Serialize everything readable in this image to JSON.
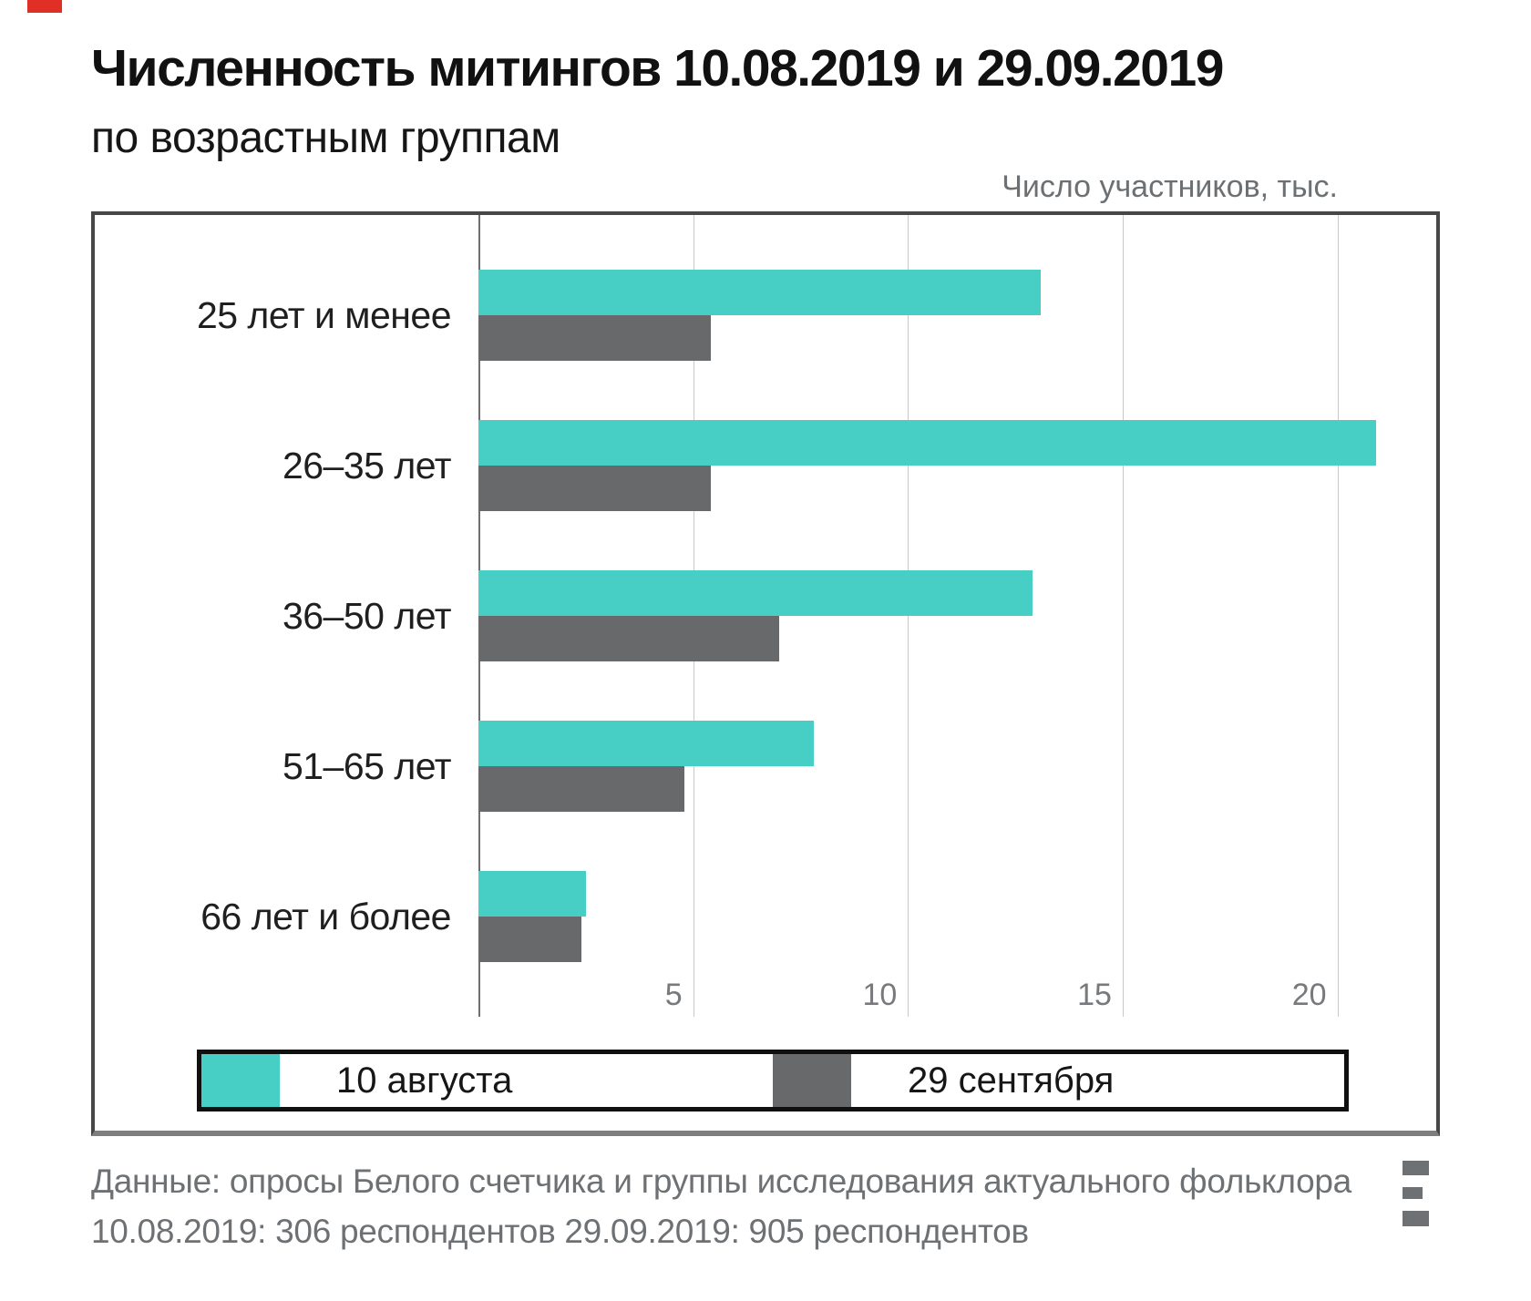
{
  "header": {
    "title": "Численность митингов 10.08.2019 и 29.09.2019",
    "subtitle": "по возрастным группам",
    "axis_note": "Число участников, тыс."
  },
  "chart_data": {
    "type": "bar",
    "orientation": "horizontal",
    "title": "Численность митингов 10.08.2019 и 29.09.2019 по возрастным группам",
    "xlabel": "Число участников, тыс.",
    "categories": [
      "25 лет и менее",
      "26–35 лет",
      "36–50 лет",
      "51–65 лет",
      "66 лет и более"
    ],
    "series": [
      {
        "name": "10 августа",
        "color": "#47cec5",
        "values": [
          13.1,
          20.9,
          12.9,
          7.8,
          2.5
        ]
      },
      {
        "name": "29 сентября",
        "color": "#67696b",
        "values": [
          5.4,
          5.4,
          7.0,
          4.8,
          2.4
        ]
      }
    ],
    "xticks": [
      5,
      10,
      15,
      20
    ],
    "xlim": [
      0,
      22.3
    ],
    "grid": true,
    "legend_position": "bottom"
  },
  "legend": {
    "items": [
      {
        "label": "10 августа",
        "color": "#47cec5"
      },
      {
        "label": "29 сентября",
        "color": "#67696b"
      }
    ]
  },
  "footer": {
    "line1": "Данные: опросы Белого счетчика и группы исследования актуального фольклора",
    "line2": "10.08.2019: 306 респондентов 29.09.2019: 905 респондентов",
    "logo": "three-bars-logo"
  },
  "colors": {
    "accent_teal": "#47cec5",
    "accent_gray": "#67696b",
    "frame_border": "#474747",
    "gridline": "#c9c9c9",
    "muted_text": "#6e7174",
    "corner_mark_red": "#e02f26"
  }
}
